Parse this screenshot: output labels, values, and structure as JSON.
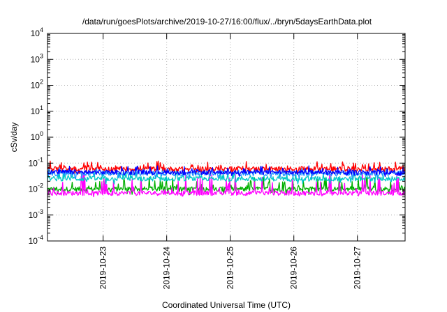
{
  "chart_data": {
    "type": "line",
    "title": "/data/run/goesPlots/archive/2019-10-27/16:00/flux/../bryn/5daysEarthData.plot",
    "xlabel": "Coordinated Universal Time (UTC)",
    "ylabel": "cSv/day",
    "y_scale": "log",
    "ylim": [
      0.0001,
      10000
    ],
    "y_ticks": [
      {
        "base": "10",
        "exp": "-4"
      },
      {
        "base": "10",
        "exp": "-3"
      },
      {
        "base": "10",
        "exp": "-2"
      },
      {
        "base": "10",
        "exp": "-1"
      },
      {
        "base": "10",
        "exp": "0"
      },
      {
        "base": "10",
        "exp": "1"
      },
      {
        "base": "10",
        "exp": "2"
      },
      {
        "base": "10",
        "exp": "3"
      },
      {
        "base": "10",
        "exp": "4"
      }
    ],
    "x_range": [
      "2019-10-22T03:00",
      "2019-10-27T18:00"
    ],
    "x_ticks": [
      "2019-10-23",
      "2019-10-24",
      "2019-10-25",
      "2019-10-26",
      "2019-10-27"
    ],
    "grid": true,
    "series": [
      {
        "color": "#ff0000",
        "typical_value": 0.06,
        "range": [
          0.04,
          0.12
        ]
      },
      {
        "color": "#00b000",
        "typical_value": 0.01,
        "range": [
          0.006,
          0.03
        ]
      },
      {
        "color": "#0000ff",
        "typical_value": 0.045,
        "range": [
          0.03,
          0.08
        ]
      },
      {
        "color": "#00c8c8",
        "typical_value": 0.025,
        "range": [
          0.015,
          0.05
        ]
      },
      {
        "color": "#ff00ff",
        "typical_value": 0.007,
        "range": [
          0.005,
          0.045
        ]
      },
      {
        "color": "#2090ff",
        "typical_value": 0.04,
        "range": [
          0.025,
          0.07
        ]
      }
    ]
  }
}
